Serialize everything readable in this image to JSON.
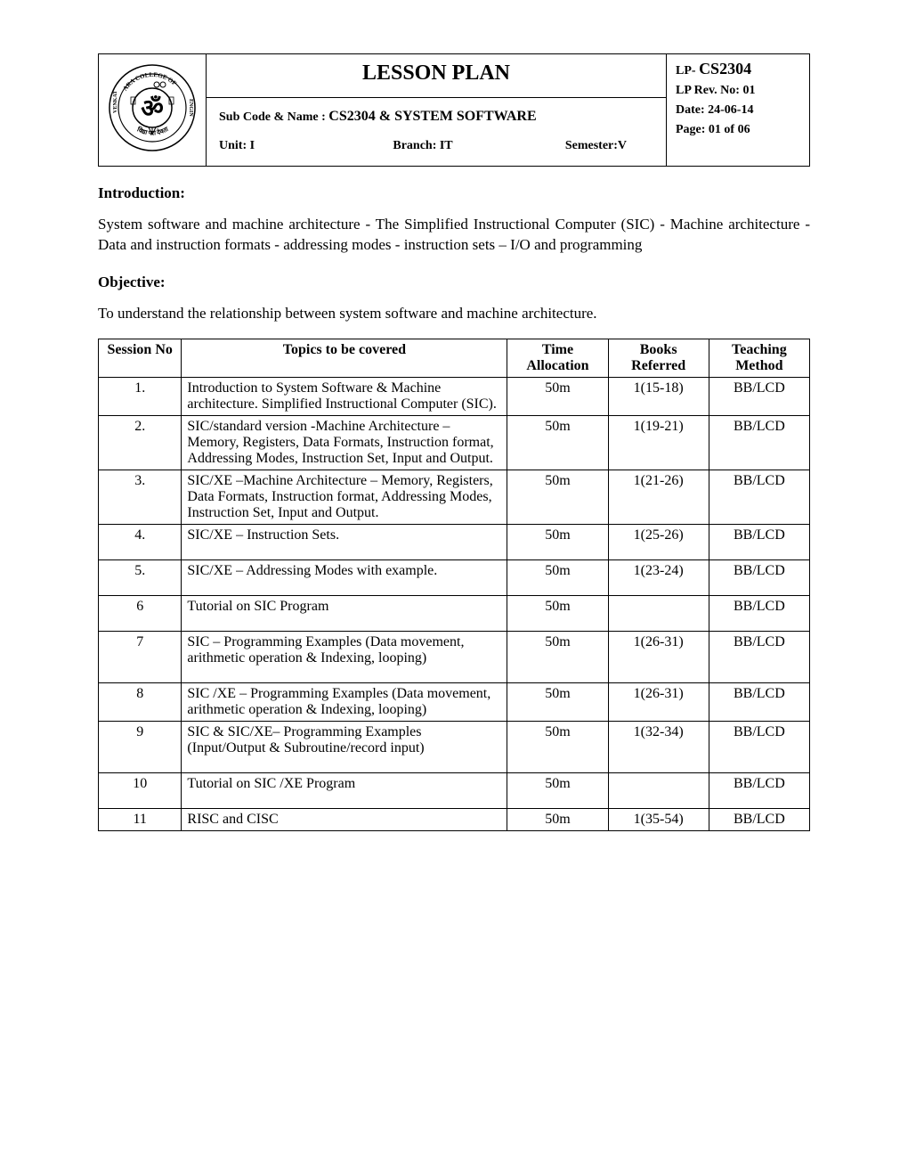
{
  "header": {
    "title": "LESSON PLAN",
    "sub_label": "Sub Code & Name :",
    "sub_value": "CS2304 & SYSTEM SOFTWARE",
    "unit_label": "Unit: I",
    "branch_label": "Branch: IT",
    "semester_label": "Semester:V",
    "lp_label": "LP-",
    "lp_code": "CS2304",
    "rev_label": "LP Rev. No: 01",
    "date_label": "Date: 24-06-14",
    "page_label": "Page:   01 of 06"
  },
  "intro": {
    "heading": "Introduction:",
    "text": "System software and machine architecture - The Simplified Instructional Computer (SIC) - Machine architecture - Data and instruction formats - addressing modes - instruction sets – I/O and programming"
  },
  "objective": {
    "heading": "Objective:",
    "text": " To understand the relationship between system software and machine architecture."
  },
  "table": {
    "headers": {
      "session": "Session No",
      "topics": "Topics to be covered",
      "time": "Time Allocation",
      "books": "Books Referred",
      "method": "Teaching Method"
    },
    "rows": [
      {
        "no": "1.",
        "topic": "Introduction to System Software & Machine  architecture. Simplified Instructional Computer (SIC).",
        "time": "50m",
        "books": "1(15-18)",
        "method": "BB/LCD",
        "tall": false
      },
      {
        "no": "2.",
        "topic": "SIC/standard version -Machine Architecture – Memory, Registers, Data Formats, Instruction format, Addressing Modes, Instruction Set, Input and Output.",
        "time": "50m",
        "books": "1(19-21)",
        "method": "BB/LCD",
        "tall": false
      },
      {
        "no": "3.",
        "topic": "SIC/XE –Machine Architecture – Memory, Registers, Data Formats, Instruction format, Addressing Modes, Instruction Set, Input and Output.",
        "time": "50m",
        "books": "1(21-26)",
        "method": "BB/LCD",
        "tall": false
      },
      {
        "no": "4.",
        "topic": "SIC/XE – Instruction Sets.",
        "time": "50m",
        "books": "1(25-26)",
        "method": "BB/LCD",
        "tall": true
      },
      {
        "no": "5.",
        "topic": "SIC/XE – Addressing Modes with example.",
        "time": "50m",
        "books": "1(23-24)",
        "method": "BB/LCD",
        "tall": true
      },
      {
        "no": "6",
        "topic": "Tutorial on SIC Program",
        "time": "50m",
        "books": "",
        "method": "BB/LCD",
        "tall": true
      },
      {
        "no": "7",
        "topic": "SIC  – Programming Examples (Data movement, arithmetic operation & Indexing, looping)",
        "time": "50m",
        "books": "1(26-31)",
        "method": "BB/LCD",
        "tall": true
      },
      {
        "no": "8",
        "topic": "SIC /XE – Programming Examples (Data movement, arithmetic operation & Indexing, looping)",
        "time": "50m",
        "books": "1(26-31)",
        "method": "BB/LCD",
        "tall": false
      },
      {
        "no": "9",
        "topic": "SIC  & SIC/XE– Programming Examples (Input/Output & Subroutine/record input)",
        "time": "50m",
        "books": "1(32-34)",
        "method": "BB/LCD",
        "tall": true
      },
      {
        "no": "10",
        "topic": "Tutorial on SIC /XE Program",
        "time": "50m",
        "books": "",
        "method": "BB/LCD",
        "tall": true
      },
      {
        "no": "11",
        "topic": "RISC and CISC",
        "time": "50m",
        "books": "1(35-54)",
        "method": "BB/LCD",
        "tall": false
      }
    ]
  }
}
